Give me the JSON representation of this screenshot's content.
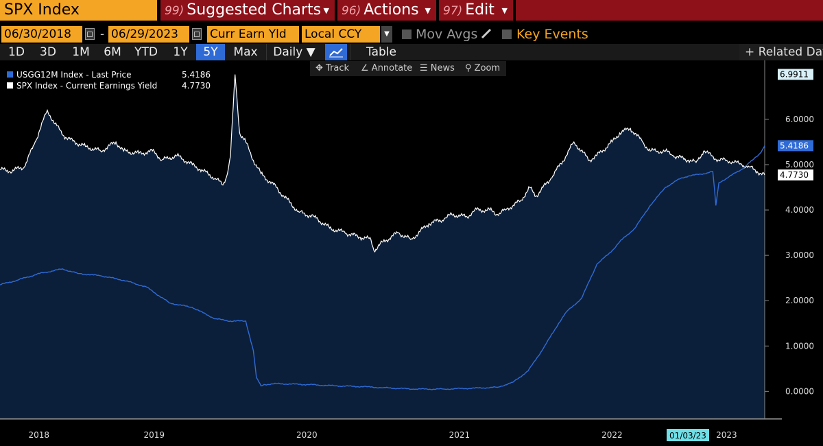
{
  "header": {
    "ticker": "SPX Index",
    "menus": [
      {
        "num": "99)",
        "label": "Suggested Charts"
      },
      {
        "num": "96)",
        "label": "Actions"
      },
      {
        "num": "97)",
        "label": "Edit"
      }
    ]
  },
  "controls": {
    "start_date": "06/30/2018",
    "end_date": "06/29/2023",
    "field": "Curr Earn Yld",
    "currency": "Local CCY",
    "mov_avgs": "Mov Avgs",
    "key_events": "Key Events"
  },
  "periods": {
    "items": [
      "1D",
      "3D",
      "1M",
      "6M",
      "YTD",
      "1Y",
      "5Y",
      "Max"
    ],
    "active": "5Y",
    "frequency": "Daily",
    "table": "Table",
    "related": "+ Related Data"
  },
  "tools": {
    "track": "Track",
    "annotate": "Annotate",
    "news": "News",
    "zoom": "Zoom"
  },
  "colors": {
    "accent_orange": "#f5a524",
    "menu_red": "#8e1119",
    "blue_series": "#2f6bd6",
    "white_series": "#ffffff",
    "area_fill": "#0c1f3a"
  },
  "legend": [
    {
      "name": "USGG12M Index - Last Price",
      "value": "5.4186",
      "color": "#2f6bd6"
    },
    {
      "name": "SPX Index - Current Earnings Yield",
      "value": "4.7730",
      "color": "#ffffff"
    }
  ],
  "chart_data": {
    "type": "line",
    "x_ticks": [
      "2018",
      "2019",
      "2020",
      "2021",
      "2022",
      "2023"
    ],
    "y_ticks": [
      "0.0000",
      "1.0000",
      "2.0000",
      "3.0000",
      "4.0000",
      "5.0000",
      "6.0000"
    ],
    "ylim": [
      -0.6,
      7.3
    ],
    "xlim": [
      2018.49,
      2023.5
    ],
    "marker_date": "01/03/23",
    "last_value_tags": [
      {
        "value": "6.9911",
        "color": "#ffffff"
      },
      {
        "value": "5.4186",
        "color": "#2f6bd6"
      },
      {
        "value": "4.7730",
        "color": "#ffffff"
      }
    ],
    "series": [
      {
        "name": "USGG12M Index - Last Price",
        "x": [
          2018.49,
          2018.6,
          2018.75,
          2018.9,
          2019.0,
          2019.15,
          2019.3,
          2019.45,
          2019.6,
          2019.75,
          2019.9,
          2020.0,
          2020.1,
          2020.15,
          2020.17,
          2020.2,
          2020.22,
          2020.3,
          2020.5,
          2020.7,
          2020.9,
          2021.0,
          2021.2,
          2021.4,
          2021.6,
          2021.75,
          2021.85,
          2021.95,
          2022.05,
          2022.15,
          2022.2,
          2022.3,
          2022.4,
          2022.5,
          2022.55,
          2022.65,
          2022.75,
          2022.85,
          2022.95,
          2023.0,
          2023.1,
          2023.16,
          2023.18,
          2023.2,
          2023.25,
          2023.35,
          2023.42,
          2023.47,
          2023.5
        ],
        "y": [
          2.35,
          2.45,
          2.6,
          2.7,
          2.6,
          2.55,
          2.45,
          2.3,
          1.95,
          1.85,
          1.6,
          1.55,
          1.55,
          0.9,
          0.3,
          0.12,
          0.15,
          0.17,
          0.15,
          0.12,
          0.1,
          0.08,
          0.05,
          0.05,
          0.07,
          0.09,
          0.2,
          0.45,
          0.95,
          1.5,
          1.75,
          2.05,
          2.8,
          3.1,
          3.3,
          3.6,
          4.1,
          4.5,
          4.7,
          4.75,
          4.8,
          4.85,
          4.1,
          4.6,
          4.7,
          4.9,
          5.1,
          5.25,
          5.4186
        ]
      },
      {
        "name": "SPX Index - Current Earnings Yield",
        "x": [
          2018.49,
          2018.55,
          2018.65,
          2018.72,
          2018.8,
          2018.85,
          2018.92,
          2018.98,
          2019.05,
          2019.15,
          2019.25,
          2019.3,
          2019.4,
          2019.5,
          2019.55,
          2019.65,
          2019.75,
          2019.8,
          2019.9,
          2019.95,
          2019.98,
          2020.0,
          2020.03,
          2020.06,
          2020.1,
          2020.15,
          2020.2,
          2020.3,
          2020.35,
          2020.45,
          2020.55,
          2020.65,
          2020.75,
          2020.85,
          2020.92,
          2020.94,
          2021.0,
          2021.1,
          2021.18,
          2021.2,
          2021.3,
          2021.4,
          2021.45,
          2021.55,
          2021.6,
          2021.7,
          2021.75,
          2021.8,
          2021.9,
          2021.96,
          2022.0,
          2022.1,
          2022.2,
          2022.25,
          2022.35,
          2022.4,
          2022.5,
          2022.55,
          2022.62,
          2022.7,
          2022.75,
          2022.8,
          2022.85,
          2022.9,
          2023.0,
          2023.05,
          2023.1,
          2023.15,
          2023.2,
          2023.25,
          2023.3,
          2023.35,
          2023.4,
          2023.45,
          2023.5
        ],
        "y": [
          4.9,
          4.85,
          4.95,
          5.5,
          6.2,
          5.9,
          5.6,
          5.5,
          5.4,
          5.3,
          5.5,
          5.3,
          5.25,
          5.3,
          5.1,
          5.2,
          5.0,
          4.9,
          4.7,
          4.55,
          4.8,
          5.2,
          6.99,
          5.7,
          5.5,
          5.1,
          4.8,
          4.5,
          4.3,
          3.95,
          3.85,
          3.6,
          3.5,
          3.4,
          3.35,
          3.1,
          3.3,
          3.5,
          3.35,
          3.4,
          3.7,
          3.8,
          3.9,
          3.85,
          4.0,
          4.0,
          3.9,
          4.0,
          4.2,
          4.5,
          4.3,
          4.7,
          5.2,
          5.5,
          5.1,
          5.2,
          5.5,
          5.7,
          5.8,
          5.5,
          5.3,
          5.3,
          5.3,
          5.2,
          5.1,
          5.05,
          5.3,
          5.2,
          5.1,
          5.1,
          5.05,
          5.0,
          4.95,
          4.85,
          4.773
        ]
      }
    ]
  }
}
